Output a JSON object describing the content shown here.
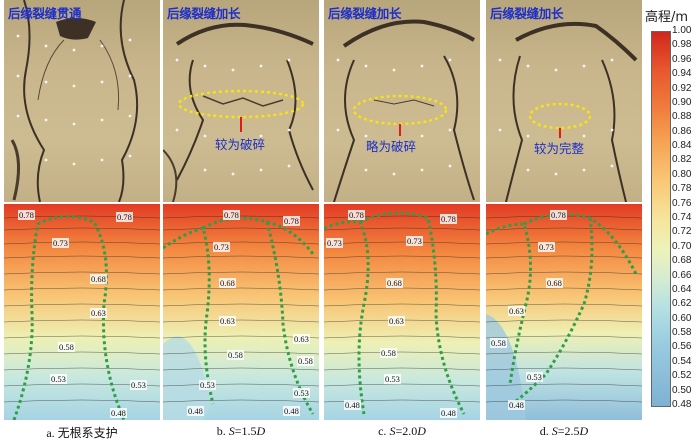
{
  "panels": [
    {
      "id": "a",
      "photo_title": "后缘裂缝贯通",
      "annotation": "",
      "caption_prefix": "a. ",
      "caption_text": "无根系支护",
      "labels": [
        "0.78",
        "0.78",
        "0.73",
        "0.68",
        "0.63",
        "0.58",
        "0.53",
        "0.53",
        "0.48"
      ]
    },
    {
      "id": "b",
      "photo_title": "后缘裂缝加长",
      "annotation": "较为破碎",
      "caption_prefix": "b. ",
      "caption_s": "S",
      "caption_eq": "=1.5",
      "caption_d": "D",
      "labels": [
        "0.78",
        "0.78",
        "0.73",
        "0.68",
        "0.63",
        "0.63",
        "0.58",
        "0.58",
        "0.53",
        "0.53",
        "0.48",
        "0.48"
      ]
    },
    {
      "id": "c",
      "photo_title": "后缘裂缝加长",
      "annotation": "略为破碎",
      "caption_prefix": "c. ",
      "caption_s": "S",
      "caption_eq": "=2.0",
      "caption_d": "D",
      "labels": [
        "0.78",
        "0.78",
        "0.73",
        "0.73",
        "0.68",
        "0.63",
        "0.58",
        "0.53",
        "0.48",
        "0.48"
      ]
    },
    {
      "id": "d",
      "photo_title": "后缘裂缝加长",
      "annotation": "较为完整",
      "caption_prefix": "d. ",
      "caption_s": "S",
      "caption_eq": "=2.5",
      "caption_d": "D",
      "labels": [
        "0.78",
        "0.73",
        "0.68",
        "0.63",
        "0.58",
        "0.53",
        "0.48"
      ]
    }
  ],
  "legend": {
    "title": "高程/m",
    "ticks": [
      "1.00",
      "0.98",
      "0.96",
      "0.94",
      "0.92",
      "0.90",
      "0.88",
      "0.86",
      "0.84",
      "0.82",
      "0.80",
      "0.78",
      "0.76",
      "0.74",
      "0.72",
      "0.70",
      "0.68",
      "0.66",
      "0.64",
      "0.62",
      "0.60",
      "0.58",
      "0.56",
      "0.54",
      "0.52",
      "0.50",
      "0.48"
    ]
  },
  "colors": {
    "annotation_text": "#1d2fc8",
    "dotted_outline": "#2e9e47",
    "ellipse": "#f5e31a",
    "marker": "#e01a1a"
  }
}
